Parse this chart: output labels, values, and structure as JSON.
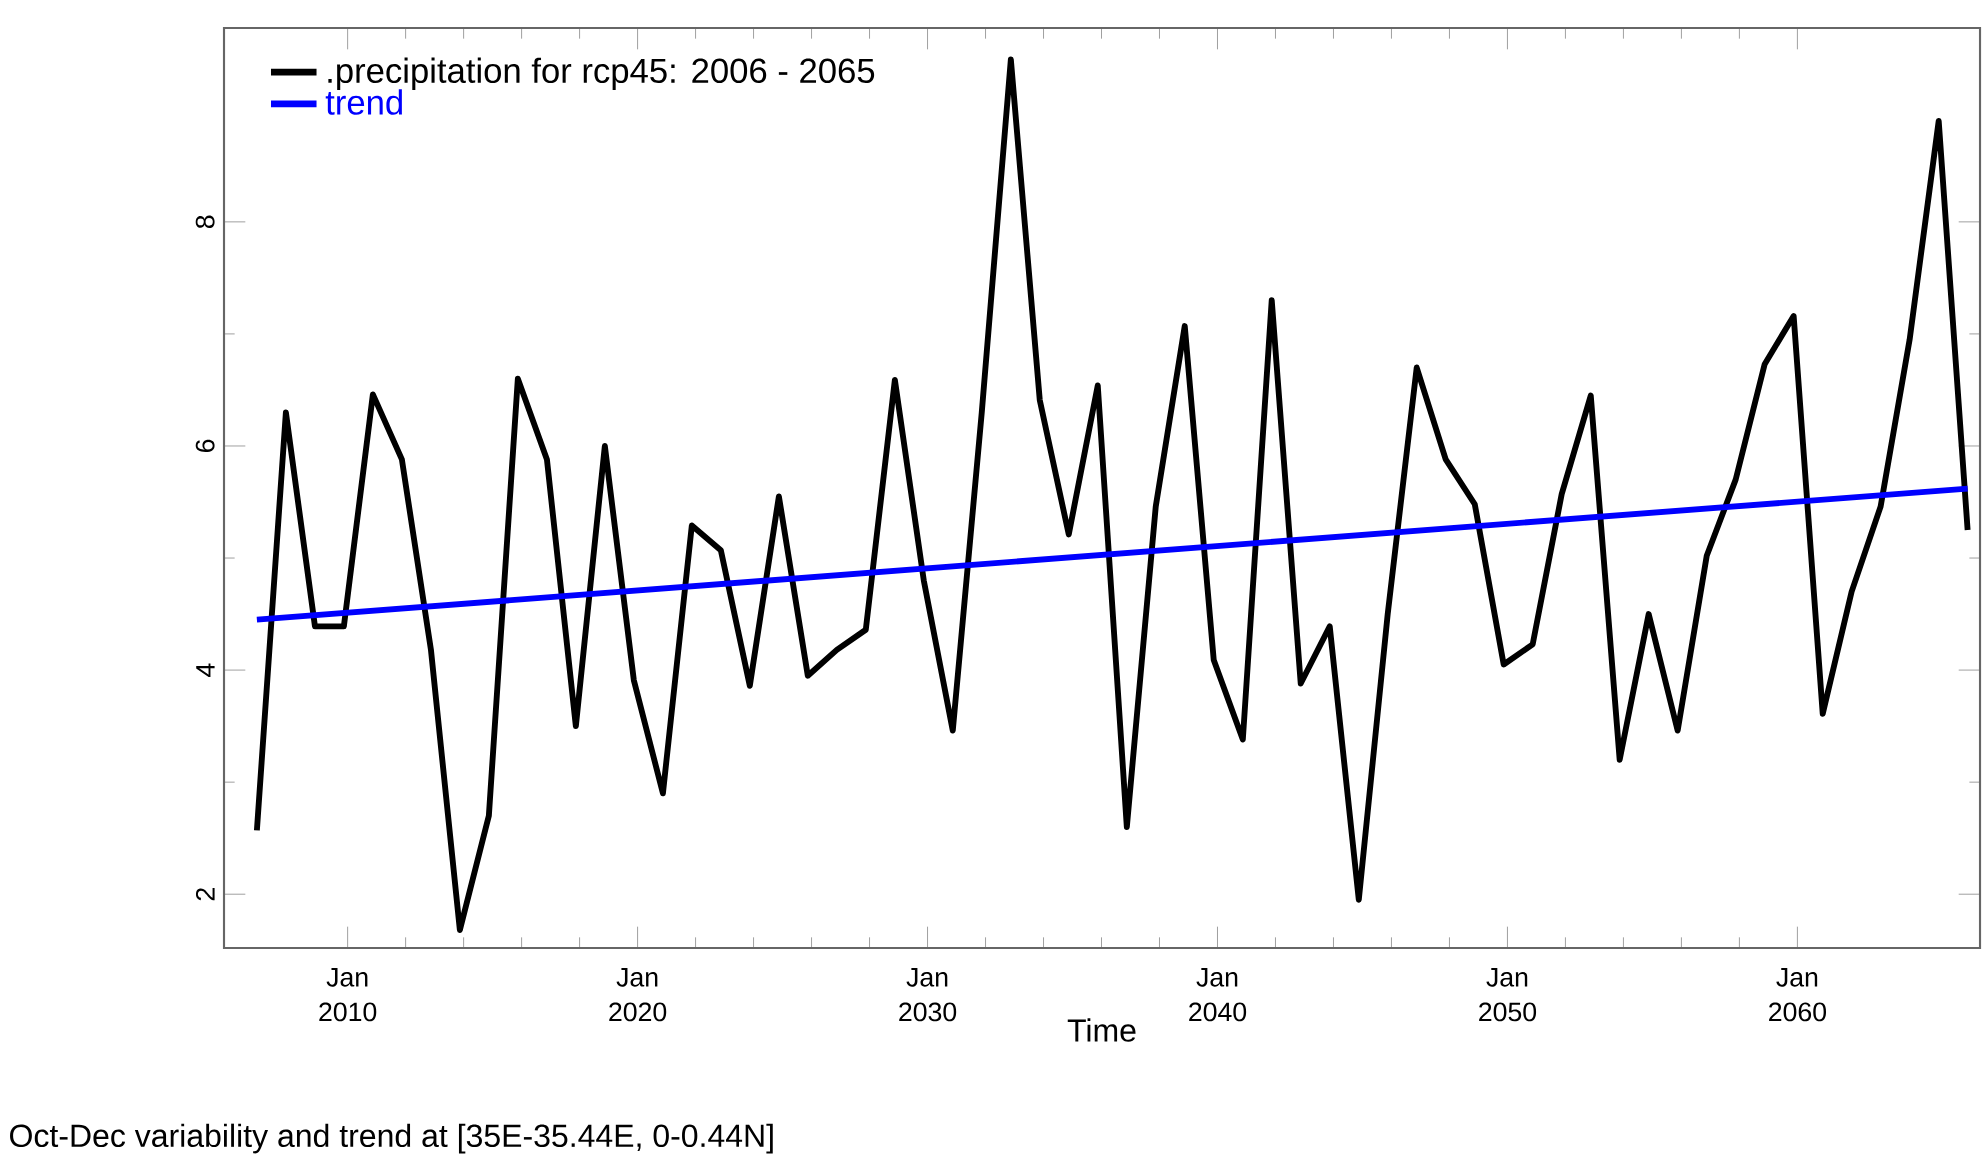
{
  "chart_data": {
    "type": "line",
    "xlabel": "Time",
    "annotations": [
      "Oct-Dec variability and trend at [35E-35.44E, 0-0.44N]"
    ],
    "xlim": [
      "2005-09-27",
      "2066-04-20"
    ],
    "xticks": [
      {
        "value": "2010-01-01",
        "label": "Jan 2010"
      },
      {
        "value": "2020-01-01",
        "label": "Jan 2020"
      },
      {
        "value": "2030-01-01",
        "label": "Jan 2030"
      },
      {
        "value": "2040-01-01",
        "label": "Jan 2040"
      },
      {
        "value": "2050-01-01",
        "label": "Jan 2050"
      },
      {
        "value": "2060-01-01",
        "label": "Jan 2060"
      }
    ],
    "ylim": [
      1.52,
      9.73
    ],
    "yticks": [
      2,
      4,
      6,
      8
    ],
    "legend": "top left",
    "series": [
      {
        "name": ".precipitation for rcp45: 2006 - 2065",
        "color": "#000000",
        "x": [
          "2006-11-15",
          "2007-11-15",
          "2008-11-15",
          "2009-11-15",
          "2010-11-15",
          "2011-11-15",
          "2012-11-15",
          "2013-11-15",
          "2014-11-15",
          "2015-11-15",
          "2016-11-15",
          "2017-11-15",
          "2018-11-15",
          "2019-11-15",
          "2020-11-15",
          "2021-11-15",
          "2022-11-15",
          "2023-11-15",
          "2024-11-15",
          "2025-11-15",
          "2026-11-15",
          "2027-11-15",
          "2028-11-15",
          "2029-11-15",
          "2030-11-15",
          "2031-11-15",
          "2032-11-15",
          "2033-11-15",
          "2034-11-15",
          "2035-11-15",
          "2036-11-15",
          "2037-11-15",
          "2038-11-15",
          "2039-11-15",
          "2040-11-15",
          "2041-11-15",
          "2042-11-15",
          "2043-11-15",
          "2044-11-15",
          "2045-11-15",
          "2046-11-15",
          "2047-11-15",
          "2048-11-15",
          "2049-11-15",
          "2050-11-15",
          "2051-11-15",
          "2052-11-15",
          "2053-11-15",
          "2054-11-15",
          "2055-11-15",
          "2056-11-15",
          "2057-11-15",
          "2058-11-15",
          "2059-11-15",
          "2060-11-15",
          "2061-11-15",
          "2062-11-15",
          "2063-11-15",
          "2064-11-15",
          "2065-11-15"
        ],
        "values": [
          2.57,
          6.3,
          4.39,
          4.39,
          6.46,
          5.88,
          4.18,
          1.68,
          2.7,
          6.6,
          5.88,
          3.5,
          6.0,
          3.91,
          2.9,
          5.29,
          5.07,
          3.86,
          5.55,
          3.95,
          4.18,
          4.36,
          6.59,
          4.8,
          3.46,
          6.3,
          9.45,
          6.41,
          5.21,
          6.54,
          2.6,
          5.46,
          7.07,
          4.09,
          3.38,
          7.3,
          3.88,
          4.39,
          1.95,
          4.5,
          6.7,
          5.88,
          5.48,
          4.05,
          4.23,
          5.57,
          6.45,
          3.2,
          4.5,
          3.46,
          5.02,
          5.7,
          6.73,
          7.16,
          3.61,
          4.7,
          5.46,
          6.95,
          8.9,
          5.25
        ]
      },
      {
        "name": "trend",
        "color": "#0000ff",
        "x": [
          "2006-11-15",
          "2065-11-15"
        ],
        "values": [
          4.45,
          5.62
        ]
      }
    ]
  }
}
